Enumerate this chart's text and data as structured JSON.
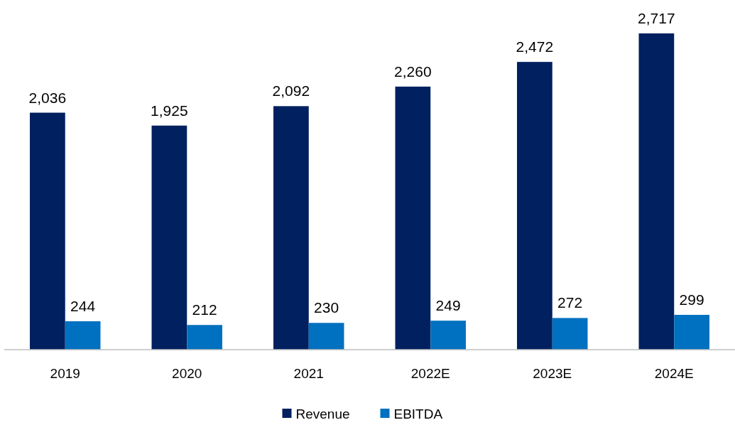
{
  "chart_data": {
    "type": "bar",
    "categories": [
      "2019",
      "2020",
      "2021",
      "2022E",
      "2023E",
      "2024E"
    ],
    "series": [
      {
        "name": "Revenue",
        "color": "#002060",
        "values": [
          2036,
          1925,
          2092,
          2260,
          2472,
          2717
        ],
        "value_labels": [
          "2,036",
          "1,925",
          "2,092",
          "2,260",
          "2,472",
          "2,717"
        ]
      },
      {
        "name": "EBITDA",
        "color": "#0070c0",
        "values": [
          244,
          212,
          230,
          249,
          272,
          299
        ],
        "value_labels": [
          "244",
          "212",
          "230",
          "249",
          "272",
          "299"
        ]
      }
    ],
    "legend": "bottom"
  }
}
